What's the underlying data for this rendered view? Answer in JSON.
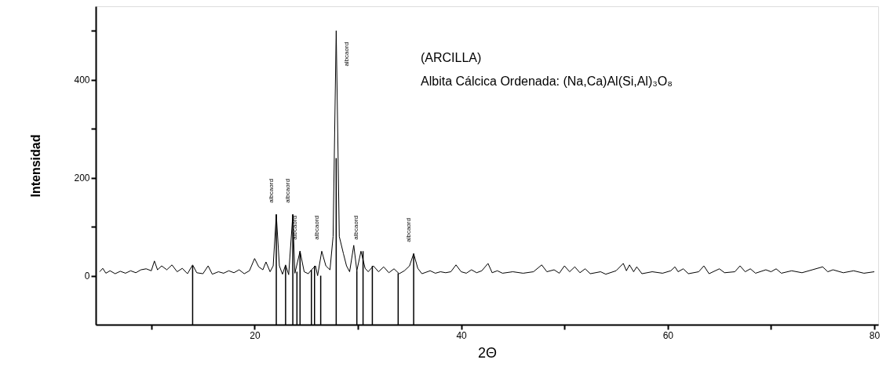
{
  "chart_data": {
    "type": "line",
    "xlabel": "2Θ",
    "ylabel": "Intensidad",
    "xlim": [
      5,
      80
    ],
    "ylim": [
      -100,
      550
    ],
    "xticks": [
      {
        "value": 10,
        "label": null
      },
      20,
      {
        "value": 30,
        "label": null
      },
      40,
      {
        "value": 50,
        "label": null
      },
      60,
      {
        "value": 70,
        "label": null
      },
      80
    ],
    "yticks": [
      0,
      {
        "value": 100,
        "label": null
      },
      200,
      {
        "value": 300,
        "label": null
      },
      400,
      {
        "value": 500,
        "label": null
      }
    ],
    "grid": false,
    "marker": "none",
    "line_style": "solid",
    "annotations": [
      "(ARCILLA)",
      "Albita Cálcica Ordenada: (Na,Ca)Al(Si,Al)₃O₈",
      {
        "text": "albcaord",
        "x": 22.1,
        "y": 125
      },
      {
        "text": "albcaord",
        "x": 23.7,
        "y": 125
      },
      {
        "text": "albcaord",
        "x": 24.4,
        "y": 50
      },
      {
        "text": "albcaord",
        "x": 26.5,
        "y": 50
      },
      {
        "text": "albcaord",
        "x": 27.9,
        "y": 500
      },
      {
        "text": "albcaord",
        "x": 30.3,
        "y": 50
      },
      {
        "text": "albcaord",
        "x": 35.4,
        "y": 45
      }
    ],
    "series": [
      {
        "color": "#000000",
        "x": [
          5,
          5.3,
          5.6,
          6,
          6.5,
          7,
          7.5,
          8,
          8.5,
          9,
          9.5,
          10,
          10.3,
          10.6,
          11,
          11.5,
          12,
          12.5,
          13,
          13.5,
          14,
          14.4,
          15,
          15.5,
          15.9,
          16.5,
          17,
          17.5,
          18,
          18.5,
          19,
          19.5,
          20,
          20.4,
          20.8,
          21.1,
          21.5,
          21.8,
          22.1,
          22.4,
          22.7,
          23,
          23.3,
          23.7,
          23.9,
          24.4,
          24.8,
          25.2,
          25.5,
          25.9,
          26.1,
          26.5,
          26.9,
          27.3,
          27.6,
          27.9,
          28.2,
          28.6,
          28.9,
          29.2,
          29.6,
          29.9,
          30.3,
          30.7,
          31,
          31.5,
          32,
          32.5,
          33,
          33.5,
          34,
          34.5,
          35,
          35.4,
          35.8,
          36.2,
          37,
          37.5,
          38,
          38.5,
          39,
          39.5,
          40,
          40.5,
          41,
          41.5,
          42,
          42.6,
          43,
          43.5,
          44,
          45,
          46,
          47,
          47.8,
          48.3,
          49,
          49.5,
          50,
          50.5,
          51,
          51.5,
          52,
          52.5,
          53.5,
          54,
          55,
          55.7,
          56,
          56.3,
          56.7,
          57,
          57.5,
          58.5,
          59.5,
          60.3,
          60.7,
          61,
          61.5,
          62,
          63,
          63.5,
          64,
          65,
          65.5,
          66.5,
          67,
          67.5,
          68,
          68.5,
          69.5,
          70,
          70.5,
          71,
          72,
          73,
          74,
          75,
          75.5,
          76,
          77,
          78,
          79,
          80
        ],
        "values": [
          8,
          15,
          5,
          10,
          4,
          9,
          5,
          10,
          6,
          12,
          14,
          10,
          30,
          12,
          20,
          12,
          22,
          8,
          15,
          4,
          22,
          6,
          4,
          20,
          3,
          8,
          5,
          10,
          6,
          12,
          4,
          10,
          35,
          18,
          12,
          28,
          8,
          20,
          125,
          20,
          3,
          22,
          2,
          125,
          5,
          50,
          8,
          4,
          12,
          20,
          0,
          50,
          20,
          12,
          80,
          500,
          80,
          45,
          20,
          8,
          62,
          10,
          50,
          15,
          8,
          20,
          8,
          18,
          6,
          14,
          4,
          10,
          20,
          45,
          15,
          4,
          10,
          5,
          8,
          6,
          8,
          22,
          8,
          5,
          12,
          6,
          10,
          25,
          6,
          10,
          5,
          8,
          5,
          8,
          22,
          8,
          12,
          5,
          20,
          8,
          18,
          6,
          14,
          4,
          8,
          3,
          10,
          25,
          10,
          22,
          8,
          18,
          4,
          8,
          5,
          10,
          18,
          8,
          14,
          4,
          8,
          20,
          4,
          14,
          6,
          8,
          20,
          8,
          14,
          5,
          12,
          8,
          14,
          5,
          10,
          6,
          12,
          18,
          8,
          12,
          6,
          10,
          5,
          8
        ]
      },
      {
        "type": "bar",
        "color": "#000000",
        "x": [
          14.0,
          22.1,
          23.0,
          23.7,
          24.1,
          24.4,
          25.5,
          25.8,
          26.4,
          27.9,
          29.9,
          30.5,
          31.4,
          33.9,
          35.4
        ],
        "base": [
          -100,
          -100,
          -100,
          -100,
          -100,
          -100,
          -100,
          -100,
          -100,
          -100,
          -100,
          -100,
          -100,
          -100,
          -100
        ],
        "values": [
          120,
          225,
          120,
          225,
          108,
          150,
          112,
          120,
          100,
          340,
          110,
          150,
          120,
          105,
          145
        ]
      }
    ]
  }
}
